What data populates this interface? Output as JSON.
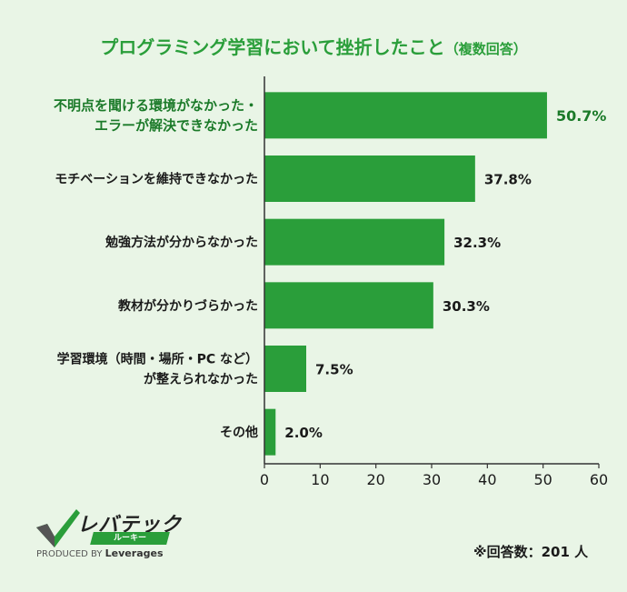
{
  "title": "プログラミング学習において挫折したこと",
  "title_sub": "（複数回答）",
  "chart_data": {
    "type": "bar",
    "orientation": "horizontal",
    "categories": [
      [
        "不明点を聞ける環境がなかった・",
        "エラーが解決できなかった"
      ],
      [
        "モチベーションを維持できなかった"
      ],
      [
        "勉強方法が分からなかった"
      ],
      [
        "教材が分かりづらかった"
      ],
      [
        "学習環境（時間・場所・PC など）",
        "が整えられなかった"
      ],
      [
        "その他"
      ]
    ],
    "values": [
      50.7,
      37.8,
      32.3,
      30.3,
      7.5,
      2.0
    ],
    "value_labels": [
      "50.7%",
      "37.8%",
      "32.3%",
      "30.3%",
      "7.5%",
      "2.0%"
    ],
    "xlim": [
      0,
      60
    ],
    "xticks": [
      0,
      10,
      20,
      30,
      40,
      50,
      60
    ],
    "bar_color": "#2a9e3a",
    "highlight_color": "#1b7a29",
    "grid": false
  },
  "logo": {
    "main": "レバテック",
    "sub": "ルーキー",
    "by": "PRODUCED BY",
    "brand": "Leverages"
  },
  "note": "※回答数：201 人"
}
